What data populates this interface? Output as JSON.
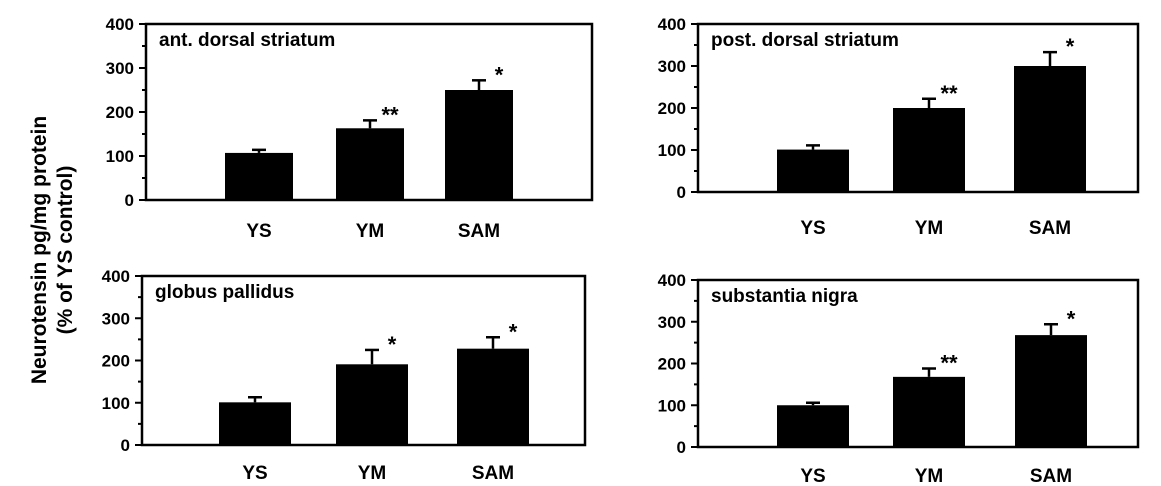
{
  "figure": {
    "ylabel_line1": "Neurotensin pg/mg protein",
    "ylabel_line2": "(% of YS control)"
  },
  "chart_data": [
    {
      "type": "bar",
      "title": "ant. dorsal striatum",
      "categories": [
        "YS",
        "YM",
        "SAM"
      ],
      "values": [
        107,
        163,
        250
      ],
      "errors": [
        7,
        18,
        22
      ],
      "significance": [
        "",
        "**",
        "*"
      ],
      "ylim": [
        0,
        400
      ],
      "yticks": [
        "0",
        "100",
        "200",
        "300",
        "400"
      ],
      "bar_color": "#000000"
    },
    {
      "type": "bar",
      "title": "post. dorsal striatum",
      "categories": [
        "YS",
        "YM",
        "SAM"
      ],
      "values": [
        101,
        200,
        300
      ],
      "errors": [
        10,
        22,
        33
      ],
      "significance": [
        "",
        "**",
        "*"
      ],
      "ylim": [
        0,
        400
      ],
      "yticks": [
        "0",
        "100",
        "200",
        "300",
        "400"
      ],
      "bar_color": "#000000"
    },
    {
      "type": "bar",
      "title": "globus pallidus",
      "categories": [
        "YS",
        "YM",
        "SAM"
      ],
      "values": [
        101,
        191,
        228
      ],
      "errors": [
        12,
        34,
        27
      ],
      "significance": [
        "",
        "*",
        "*"
      ],
      "ylim": [
        0,
        400
      ],
      "yticks": [
        "0",
        "100",
        "200",
        "300",
        "400"
      ],
      "bar_color": "#000000"
    },
    {
      "type": "bar",
      "title": "substantia nigra",
      "categories": [
        "YS",
        "YM",
        "SAM"
      ],
      "values": [
        100,
        168,
        268
      ],
      "errors": [
        6,
        20,
        26
      ],
      "significance": [
        "",
        "**",
        "*"
      ],
      "ylim": [
        0,
        400
      ],
      "yticks": [
        "0",
        "100",
        "200",
        "300",
        "400"
      ],
      "bar_color": "#000000"
    }
  ]
}
